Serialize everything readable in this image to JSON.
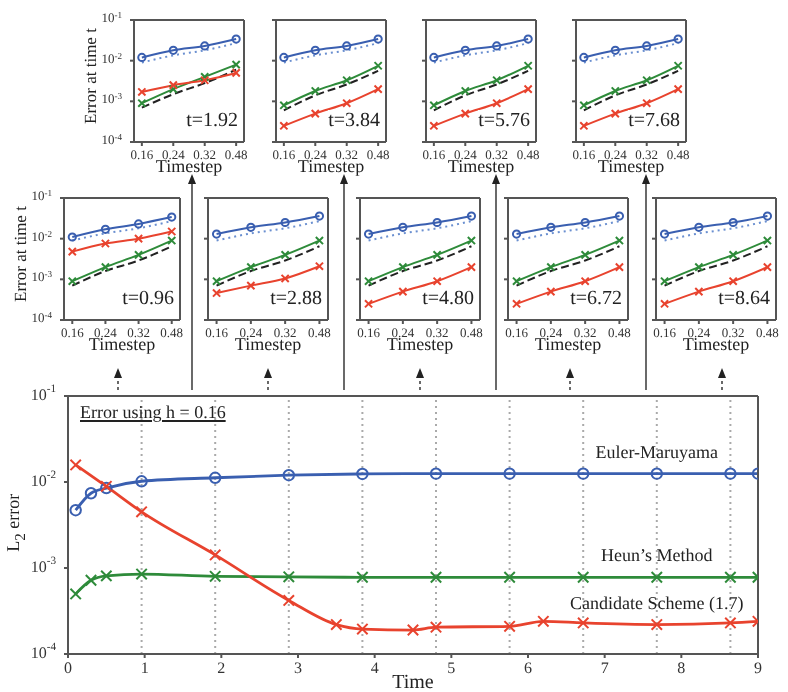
{
  "chart_data": [
    {
      "type": "line",
      "xlabel": "Timestep",
      "ylabel": "Error at time  t",
      "annotations": [
        "t=1.92"
      ],
      "categories": [
        "0.16",
        "0.24",
        "0.32",
        "0.48"
      ],
      "log": true,
      "ylim": [
        0.0001,
        0.1
      ],
      "yticks": [
        {
          "value": 0.0001,
          "label": "10$^{-4}$"
        },
        {
          "value": 0.001,
          "label": "10$^{-3}$"
        },
        {
          "value": 0.01,
          "label": "10$^{-2}$"
        },
        {
          "value": 0.1,
          "label": "10$^{-1}$"
        }
      ],
      "series": [
        {
          "color": "#3a5fb0",
          "marker": "circle",
          "values": [
            0.012,
            0.018,
            0.023,
            0.034
          ]
        },
        {
          "color": "#6a8fd0",
          "marker": "none",
          "line_style": "dotted",
          "values": [
            0.009,
            0.0135,
            0.018,
            0.027
          ]
        },
        {
          "color": "#2e8b3a",
          "marker": "cross",
          "values": [
            0.0009,
            0.002,
            0.004,
            0.008
          ]
        },
        {
          "color": "#222222",
          "marker": "none",
          "line_style": "dashed",
          "values": [
            0.0007,
            0.0015,
            0.0028,
            0.006
          ]
        },
        {
          "color": "#e8432e",
          "marker": "cross",
          "values": [
            0.0017,
            0.0025,
            0.0033,
            0.005
          ]
        }
      ]
    },
    {
      "type": "line",
      "xlabel": "Timestep",
      "annotations": [
        "t=3.84"
      ],
      "tick_labels": "x",
      "categories": [
        "0.16",
        "0.24",
        "0.32",
        "0.48"
      ],
      "log": true,
      "ylim": [
        0.0001,
        0.1
      ],
      "yticks": [
        0.0001,
        0.001,
        0.01,
        0.1
      ],
      "series": [
        {
          "color": "#3a5fb0",
          "marker": "circle",
          "values": [
            0.012,
            0.018,
            0.023,
            0.034
          ]
        },
        {
          "color": "#6a8fd0",
          "marker": "none",
          "line_style": "dotted",
          "values": [
            0.009,
            0.0135,
            0.018,
            0.027
          ]
        },
        {
          "color": "#2e8b3a",
          "marker": "cross",
          "values": [
            0.0008,
            0.0018,
            0.0033,
            0.0075
          ]
        },
        {
          "color": "#222222",
          "marker": "none",
          "line_style": "dashed",
          "values": [
            0.0006,
            0.0014,
            0.0026,
            0.0056
          ]
        },
        {
          "color": "#e8432e",
          "marker": "cross",
          "values": [
            0.00025,
            0.0005,
            0.0009,
            0.002
          ]
        }
      ]
    },
    {
      "type": "line",
      "xlabel": "Timestep",
      "annotations": [
        "t=5.76"
      ],
      "tick_labels": "x",
      "categories": [
        "0.16",
        "0.24",
        "0.32",
        "0.48"
      ],
      "log": true,
      "ylim": [
        0.0001,
        0.1
      ],
      "yticks": [
        0.0001,
        0.001,
        0.01,
        0.1
      ],
      "series": [
        {
          "color": "#3a5fb0",
          "marker": "circle",
          "values": [
            0.012,
            0.018,
            0.023,
            0.034
          ]
        },
        {
          "color": "#6a8fd0",
          "marker": "none",
          "line_style": "dotted",
          "values": [
            0.009,
            0.0135,
            0.018,
            0.027
          ]
        },
        {
          "color": "#2e8b3a",
          "marker": "cross",
          "values": [
            0.0008,
            0.0018,
            0.0033,
            0.0075
          ]
        },
        {
          "color": "#222222",
          "marker": "none",
          "line_style": "dashed",
          "values": [
            0.0006,
            0.0014,
            0.0026,
            0.0056
          ]
        },
        {
          "color": "#e8432e",
          "marker": "cross",
          "values": [
            0.00025,
            0.0005,
            0.0009,
            0.002
          ]
        }
      ]
    },
    {
      "type": "line",
      "xlabel": "Timestep",
      "annotations": [
        "t=7.68"
      ],
      "tick_labels": "x",
      "categories": [
        "0.16",
        "0.24",
        "0.32",
        "0.48"
      ],
      "log": true,
      "ylim": [
        0.0001,
        0.1
      ],
      "yticks": [
        0.0001,
        0.001,
        0.01,
        0.1
      ],
      "series": [
        {
          "color": "#3a5fb0",
          "marker": "circle",
          "values": [
            0.012,
            0.018,
            0.023,
            0.034
          ]
        },
        {
          "color": "#6a8fd0",
          "marker": "none",
          "line_style": "dotted",
          "values": [
            0.009,
            0.0135,
            0.018,
            0.027
          ]
        },
        {
          "color": "#2e8b3a",
          "marker": "cross",
          "values": [
            0.0008,
            0.0018,
            0.0033,
            0.0075
          ]
        },
        {
          "color": "#222222",
          "marker": "none",
          "line_style": "dashed",
          "values": [
            0.0006,
            0.0014,
            0.0026,
            0.0056
          ]
        },
        {
          "color": "#e8432e",
          "marker": "cross",
          "values": [
            0.00025,
            0.0005,
            0.0009,
            0.002
          ]
        }
      ]
    },
    {
      "type": "line",
      "xlabel": "Timestep",
      "ylabel": "Error at time  t",
      "annotations": [
        "t=0.96"
      ],
      "categories": [
        "0.16",
        "0.24",
        "0.32",
        "0.48"
      ],
      "log": true,
      "ylim": [
        0.0001,
        0.1
      ],
      "yticks": [
        {
          "value": 0.0001,
          "label": "10$^{-4}$"
        },
        {
          "value": 0.001,
          "label": "10$^{-3}$"
        },
        {
          "value": 0.01,
          "label": "10$^{-2}$"
        },
        {
          "value": 0.1,
          "label": "10$^{-1}$"
        }
      ],
      "series": [
        {
          "color": "#3a5fb0",
          "marker": "circle",
          "values": [
            0.011,
            0.017,
            0.023,
            0.034
          ]
        },
        {
          "color": "#6a8fd0",
          "marker": "none",
          "line_style": "dotted",
          "values": [
            0.009,
            0.0135,
            0.018,
            0.027
          ]
        },
        {
          "color": "#2e8b3a",
          "marker": "cross",
          "values": [
            0.0009,
            0.002,
            0.004,
            0.009
          ]
        },
        {
          "color": "#222222",
          "marker": "none",
          "line_style": "dashed",
          "values": [
            0.0007,
            0.0016,
            0.0029,
            0.0065
          ]
        },
        {
          "color": "#e8432e",
          "marker": "cross",
          "values": [
            0.0048,
            0.0076,
            0.01,
            0.015
          ]
        }
      ]
    },
    {
      "type": "line",
      "xlabel": "Timestep",
      "annotations": [
        "t=2.88"
      ],
      "tick_labels": "x",
      "categories": [
        "0.16",
        "0.24",
        "0.32",
        "0.48"
      ],
      "log": true,
      "ylim": [
        0.0001,
        0.1
      ],
      "yticks": [
        0.0001,
        0.001,
        0.01,
        0.1
      ],
      "series": [
        {
          "color": "#3a5fb0",
          "marker": "circle",
          "values": [
            0.013,
            0.019,
            0.025,
            0.036
          ]
        },
        {
          "color": "#6a8fd0",
          "marker": "none",
          "line_style": "dotted",
          "values": [
            0.009,
            0.0135,
            0.018,
            0.027
          ]
        },
        {
          "color": "#2e8b3a",
          "marker": "cross",
          "values": [
            0.0009,
            0.002,
            0.004,
            0.009
          ]
        },
        {
          "color": "#222222",
          "marker": "none",
          "line_style": "dashed",
          "values": [
            0.0007,
            0.0016,
            0.0029,
            0.0065
          ]
        },
        {
          "color": "#e8432e",
          "marker": "cross",
          "values": [
            0.00046,
            0.0007,
            0.00105,
            0.0021
          ]
        }
      ]
    },
    {
      "type": "line",
      "xlabel": "Timestep",
      "annotations": [
        "t=4.80"
      ],
      "tick_labels": "x",
      "categories": [
        "0.16",
        "0.24",
        "0.32",
        "0.48"
      ],
      "log": true,
      "ylim": [
        0.0001,
        0.1
      ],
      "yticks": [
        0.0001,
        0.001,
        0.01,
        0.1
      ],
      "series": [
        {
          "color": "#3a5fb0",
          "marker": "circle",
          "values": [
            0.013,
            0.019,
            0.025,
            0.036
          ]
        },
        {
          "color": "#6a8fd0",
          "marker": "none",
          "line_style": "dotted",
          "values": [
            0.009,
            0.0135,
            0.018,
            0.027
          ]
        },
        {
          "color": "#2e8b3a",
          "marker": "cross",
          "values": [
            0.0009,
            0.002,
            0.004,
            0.009
          ]
        },
        {
          "color": "#222222",
          "marker": "none",
          "line_style": "dashed",
          "values": [
            0.0007,
            0.0016,
            0.0029,
            0.0065
          ]
        },
        {
          "color": "#e8432e",
          "marker": "cross",
          "values": [
            0.00025,
            0.0005,
            0.0009,
            0.002
          ]
        }
      ]
    },
    {
      "type": "line",
      "xlabel": "Timestep",
      "annotations": [
        "t=6.72"
      ],
      "tick_labels": "x",
      "categories": [
        "0.16",
        "0.24",
        "0.32",
        "0.48"
      ],
      "log": true,
      "ylim": [
        0.0001,
        0.1
      ],
      "yticks": [
        0.0001,
        0.001,
        0.01,
        0.1
      ],
      "series": [
        {
          "color": "#3a5fb0",
          "marker": "circle",
          "values": [
            0.013,
            0.019,
            0.025,
            0.036
          ]
        },
        {
          "color": "#6a8fd0",
          "marker": "none",
          "line_style": "dotted",
          "values": [
            0.009,
            0.0135,
            0.018,
            0.027
          ]
        },
        {
          "color": "#2e8b3a",
          "marker": "cross",
          "values": [
            0.0009,
            0.002,
            0.004,
            0.009
          ]
        },
        {
          "color": "#222222",
          "marker": "none",
          "line_style": "dashed",
          "values": [
            0.0007,
            0.0016,
            0.0029,
            0.0065
          ]
        },
        {
          "color": "#e8432e",
          "marker": "cross",
          "values": [
            0.00025,
            0.0005,
            0.0009,
            0.002
          ]
        }
      ]
    },
    {
      "type": "line",
      "xlabel": "Timestep",
      "annotations": [
        "t=8.64"
      ],
      "tick_labels": "x",
      "categories": [
        "0.16",
        "0.24",
        "0.32",
        "0.48"
      ],
      "log": true,
      "ylim": [
        0.0001,
        0.1
      ],
      "yticks": [
        0.0001,
        0.001,
        0.01,
        0.1
      ],
      "series": [
        {
          "color": "#3a5fb0",
          "marker": "circle",
          "values": [
            0.013,
            0.019,
            0.025,
            0.036
          ]
        },
        {
          "color": "#6a8fd0",
          "marker": "none",
          "line_style": "dotted",
          "values": [
            0.009,
            0.0135,
            0.018,
            0.027
          ]
        },
        {
          "color": "#2e8b3a",
          "marker": "cross",
          "values": [
            0.0009,
            0.002,
            0.004,
            0.009
          ]
        },
        {
          "color": "#222222",
          "marker": "none",
          "line_style": "dashed",
          "values": [
            0.0007,
            0.0016,
            0.0029,
            0.0065
          ]
        },
        {
          "color": "#e8432e",
          "marker": "cross",
          "values": [
            0.00025,
            0.0005,
            0.0009,
            0.002
          ]
        }
      ]
    },
    {
      "type": "line",
      "xlabel": "Time",
      "ylabel": "L$_{2}$ error",
      "annotations": [
        "Error using h = 0.16"
      ],
      "log": true,
      "xlim": [
        0,
        9
      ],
      "xticks": [
        0,
        1,
        2,
        3,
        4,
        5,
        6,
        7,
        8,
        9
      ],
      "ylim": [
        0.0001,
        0.1
      ],
      "yticks": [
        {
          "value": 0.0001,
          "label": "10$^{-4}$"
        },
        {
          "value": 0.001,
          "label": "10$^{-3}$"
        },
        {
          "value": 0.01,
          "label": "10$^{-2}$"
        },
        {
          "value": 0.1,
          "label": "10$^{-1}$"
        }
      ],
      "ref_lines": [
        {
          "axis": "x",
          "value": 0.96,
          "line_style": "dotted",
          "color": "#aaaaaa"
        },
        {
          "axis": "x",
          "value": 1.92,
          "line_style": "dotted",
          "color": "#aaaaaa"
        },
        {
          "axis": "x",
          "value": 2.88,
          "line_style": "dotted",
          "color": "#aaaaaa"
        },
        {
          "axis": "x",
          "value": 3.84,
          "line_style": "dotted",
          "color": "#aaaaaa"
        },
        {
          "axis": "x",
          "value": 4.8,
          "line_style": "dotted",
          "color": "#aaaaaa"
        },
        {
          "axis": "x",
          "value": 5.76,
          "line_style": "dotted",
          "color": "#aaaaaa"
        },
        {
          "axis": "x",
          "value": 6.72,
          "line_style": "dotted",
          "color": "#aaaaaa"
        },
        {
          "axis": "x",
          "value": 7.68,
          "line_style": "dotted",
          "color": "#aaaaaa"
        },
        {
          "axis": "x",
          "value": 8.64,
          "line_style": "dotted",
          "color": "#aaaaaa"
        }
      ],
      "series": [
        {
          "name": "Euler-Maruyama",
          "color": "#3a5fb0",
          "marker": "circle",
          "x": [
            0.1,
            0.3,
            0.5,
            0.96,
            1.92,
            2.88,
            3.84,
            4.8,
            5.76,
            6.72,
            7.68,
            8.64,
            9
          ],
          "values": [
            0.0047,
            0.0074,
            0.0085,
            0.0102,
            0.0112,
            0.012,
            0.0124,
            0.0125,
            0.0125,
            0.0125,
            0.0125,
            0.0125,
            0.0125
          ]
        },
        {
          "name": "Heun’s Method",
          "color": "#2e8b3a",
          "marker": "cross",
          "x": [
            0.1,
            0.3,
            0.5,
            0.96,
            1.92,
            2.88,
            3.84,
            4.8,
            5.76,
            6.72,
            7.68,
            8.64,
            9
          ],
          "values": [
            0.0005,
            0.00072,
            0.00081,
            0.00085,
            0.0008,
            0.00079,
            0.00078,
            0.00078,
            0.00078,
            0.00078,
            0.00078,
            0.00078,
            0.00078
          ]
        },
        {
          "name": "Candidate Scheme (1.7)",
          "color": "#e8432e",
          "marker": "cross",
          "x": [
            0.1,
            0.5,
            0.96,
            1.92,
            2.88,
            3.5,
            3.84,
            4.5,
            4.8,
            5.76,
            6.2,
            6.72,
            7.68,
            8.64,
            9
          ],
          "values": [
            0.0158,
            0.0089,
            0.0045,
            0.00142,
            0.00042,
            0.00022,
            0.000195,
            0.00019,
            0.000205,
            0.00021,
            0.00024,
            0.00023,
            0.00022,
            0.00023,
            0.00024
          ]
        }
      ]
    }
  ]
}
